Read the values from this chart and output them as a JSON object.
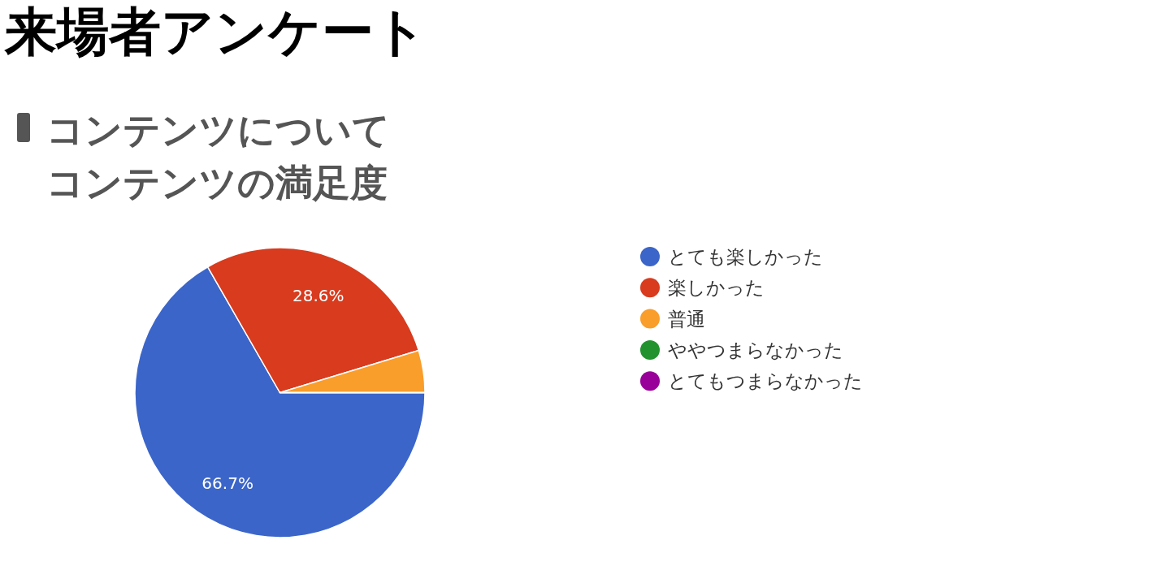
{
  "chart_data": {
    "type": "pie",
    "title": "来場者アンケート",
    "subtitle": "コンテンツについて",
    "annotations": [
      "コンテンツの満足度"
    ],
    "categories": [
      "とても楽しかった",
      "楽しかった",
      "普通",
      "ややつまらなかった",
      "とてもつまらなかった"
    ],
    "values": [
      66.7,
      28.6,
      4.7,
      0,
      0
    ],
    "colors": [
      "#3b65c8",
      "#d83b1e",
      "#f99d2b",
      "#22922f",
      "#990099"
    ],
    "value_labels": [
      "66.7%",
      "28.6%",
      null,
      null,
      null
    ],
    "legend": "right"
  }
}
